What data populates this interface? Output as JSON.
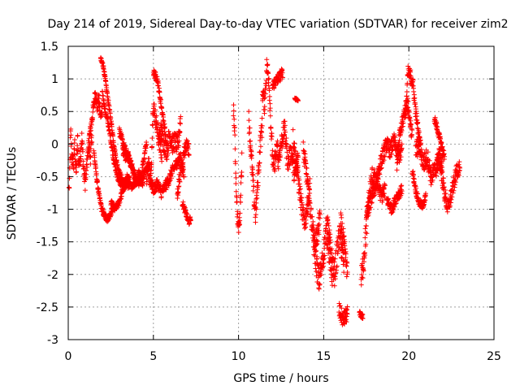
{
  "chart_data": {
    "type": "scatter",
    "title": "Day 214 of 2019, Sidereal Day-to-day VTEC variation (SDTVAR) for receiver zim2",
    "xlabel": "GPS time / hours",
    "ylabel": "SDTVAR / TECUs",
    "xlim": [
      0,
      25
    ],
    "ylim": [
      -3,
      1.5
    ],
    "x_ticks": [
      0,
      5,
      10,
      15,
      20,
      25
    ],
    "y_ticks": [
      1.5,
      1,
      0.5,
      0,
      -0.5,
      -1,
      -1.5,
      -2,
      -2.5,
      -3
    ],
    "x_tick_labels": [
      "0",
      "5",
      "10",
      "15",
      "20",
      "25"
    ],
    "y_tick_labels": [
      "1.5",
      "1",
      "0.5",
      "0",
      "-0.5",
      "-1",
      "-1.5",
      "-2",
      "-2.5",
      "-3"
    ],
    "grid": true,
    "marker": "+",
    "color": "#ff0000",
    "series": [
      {
        "name": "SDTVAR",
        "tracks": [
          {
            "t0": 0.05,
            "t1": 0.6,
            "v": [
              -0.7,
              -0.4,
              0.2,
              -0.1,
              -0.3,
              -0.2,
              -0.35,
              0.05,
              -0.25,
              -0.45,
              -0.2,
              0.1,
              -0.3
            ],
            "spread": 0.12
          },
          {
            "t0": 0.6,
            "t1": 1.4,
            "v": [
              -0.3,
              -0.2,
              0.1,
              -0.4,
              -0.6,
              -0.3,
              0.0,
              -0.2,
              0.1
            ],
            "spread": 0.12
          },
          {
            "t0": 1.2,
            "t1": 2.0,
            "v": [
              0.05,
              0.2,
              0.4,
              0.6,
              0.8,
              0.55,
              0.7,
              0.4,
              0.6
            ],
            "spread": 0.1
          },
          {
            "t0": 1.5,
            "t1": 2.6,
            "v": [
              -0.1,
              -0.5,
              -0.8,
              -1.0,
              -1.1,
              -1.15,
              -1.1,
              -1.0
            ],
            "spread": 0.05
          },
          {
            "t0": 1.9,
            "t1": 3.5,
            "v": [
              1.3,
              1.2,
              0.9,
              0.6,
              0.3,
              -0.05,
              -0.3,
              -0.45,
              -0.55,
              -0.6,
              -0.65
            ],
            "spread": 0.04
          },
          {
            "t0": 2.0,
            "t1": 3.6,
            "v": [
              0.8,
              0.5,
              0.3,
              0.0,
              -0.3,
              -0.5,
              -0.6,
              -0.65,
              -0.5,
              -0.55
            ],
            "spread": 0.05
          },
          {
            "t0": 2.5,
            "t1": 4.4,
            "v": [
              -0.9,
              -1.0,
              -0.9,
              -0.7,
              -0.6,
              -0.65,
              -0.6,
              -0.55,
              -0.6
            ],
            "spread": 0.05
          },
          {
            "t0": 3.2,
            "t1": 4.6,
            "v": [
              -0.1,
              -0.2,
              -0.15,
              -0.3,
              -0.4,
              -0.6,
              -0.45,
              -0.5,
              -0.2,
              0.05
            ],
            "spread": 0.06
          },
          {
            "t0": 3.0,
            "t1": 4.8,
            "v": [
              0.2,
              0.0,
              -0.15,
              -0.3,
              -0.5,
              -0.6,
              -0.5,
              -0.4,
              -0.3
            ],
            "spread": 0.06
          },
          {
            "t0": 4.6,
            "t1": 5.5,
            "v": [
              -0.5,
              -0.3,
              -0.6,
              0.6,
              0.4,
              0.2,
              0.0,
              -0.15
            ],
            "spread": 0.15
          },
          {
            "t0": 5.0,
            "t1": 5.8,
            "v": [
              1.1,
              1.05,
              1.0,
              0.8,
              0.6,
              0.4,
              0.2,
              -0.1
            ],
            "spread": 0.06
          },
          {
            "t0": 5.3,
            "t1": 6.6,
            "v": [
              0.1,
              0.2,
              0.0,
              -0.1,
              0.15,
              0.0,
              0.05,
              -0.05,
              0.4
            ],
            "spread": 0.15
          },
          {
            "t0": 4.8,
            "t1": 6.8,
            "v": [
              -0.55,
              -0.7,
              -0.6,
              -0.75,
              -0.65,
              -0.55,
              -0.4,
              -0.3,
              -0.2,
              -0.5
            ],
            "spread": 0.08
          },
          {
            "t0": 6.4,
            "t1": 7.1,
            "v": [
              -0.8,
              -0.5,
              -0.3,
              -0.1,
              0.0,
              -0.1
            ],
            "spread": 0.1
          },
          {
            "t0": 6.7,
            "t1": 7.2,
            "v": [
              -0.9,
              -1.0,
              -1.1,
              -1.2,
              -1.15
            ],
            "spread": 0.05
          },
          {
            "t0": 9.7,
            "t1": 10.2,
            "v": [
              0.55,
              0.2,
              -0.5,
              -1.0,
              -1.3,
              -1.2,
              -0.7,
              -0.2
            ],
            "spread": 0.12
          },
          {
            "t0": 10.6,
            "t1": 11.4,
            "v": [
              0.4,
              0.0,
              -0.4,
              -0.8,
              -1.1,
              -0.7,
              -0.3,
              0.1,
              0.3
            ],
            "spread": 0.15
          },
          {
            "t0": 11.4,
            "t1": 12.3,
            "v": [
              0.8,
              0.6,
              1.2,
              1.0,
              0.2,
              -0.4,
              -0.2,
              -0.05
            ],
            "spread": 0.15
          },
          {
            "t0": 12.0,
            "t1": 12.6,
            "v": [
              0.9,
              1.0,
              1.1
            ],
            "spread": 0.08
          },
          {
            "t0": 12.3,
            "t1": 13.5,
            "v": [
              -0.3,
              0.0,
              0.25,
              -0.3,
              -0.1,
              -0.5,
              -0.2
            ],
            "spread": 0.15
          },
          {
            "t0": 13.3,
            "t1": 13.5,
            "v": [
              0.7,
              0.68
            ],
            "spread": 0.02
          },
          {
            "t0": 13.2,
            "t1": 14.2,
            "v": [
              0.1,
              -0.2,
              -0.5,
              -0.8,
              -1.1,
              -1.2,
              -0.9,
              -0.6
            ],
            "spread": 0.15
          },
          {
            "t0": 13.8,
            "t1": 14.8,
            "v": [
              -0.1,
              -0.4,
              -0.8,
              -1.2,
              -1.5,
              -1.4,
              -1.1
            ],
            "spread": 0.15
          },
          {
            "t0": 14.4,
            "t1": 15.5,
            "v": [
              -1.5,
              -1.8,
              -2.1,
              -1.9,
              -1.6,
              -1.3,
              -1.7,
              -2.0
            ],
            "spread": 0.2
          },
          {
            "t0": 15.2,
            "t1": 16.2,
            "v": [
              -1.2,
              -1.5,
              -1.8,
              -2.0,
              -1.7,
              -1.4,
              -1.6,
              -1.9
            ],
            "spread": 0.2
          },
          {
            "t0": 15.9,
            "t1": 16.4,
            "v": [
              -2.55,
              -2.7,
              -2.6
            ],
            "spread": 0.12
          },
          {
            "t0": 16.0,
            "t1": 16.4,
            "v": [
              -1.2,
              -1.4,
              -1.7,
              -2.0
            ],
            "spread": 0.15
          },
          {
            "t0": 17.1,
            "t1": 17.3,
            "v": [
              -2.6,
              -2.65
            ],
            "spread": 0.04
          },
          {
            "t0": 17.2,
            "t1": 18.0,
            "v": [
              -2.1,
              -1.8,
              -1.4,
              -1.0,
              -0.7,
              -0.5,
              -0.6
            ],
            "spread": 0.2
          },
          {
            "t0": 17.5,
            "t1": 18.6,
            "v": [
              -1.1,
              -0.9,
              -0.7,
              -0.6,
              -0.8,
              -0.7
            ],
            "spread": 0.12
          },
          {
            "t0": 18.0,
            "t1": 19.6,
            "v": [
              -0.6,
              -0.4,
              -0.2,
              0.0,
              -0.1,
              0.05,
              -0.2,
              -0.1
            ],
            "spread": 0.12
          },
          {
            "t0": 18.7,
            "t1": 19.6,
            "v": [
              -0.85,
              -1.0,
              -0.8,
              -0.7
            ],
            "spread": 0.08
          },
          {
            "t0": 19.3,
            "t1": 20.2,
            "v": [
              -0.3,
              0.1,
              0.3,
              0.5,
              0.65,
              0.4,
              0.1
            ],
            "spread": 0.12
          },
          {
            "t0": 19.8,
            "t1": 20.7,
            "v": [
              0.4,
              1.1,
              1.05,
              0.9,
              0.5,
              0.2,
              -0.1
            ],
            "spread": 0.1
          },
          {
            "t0": 20.2,
            "t1": 21.0,
            "v": [
              -0.4,
              -0.7,
              -0.9,
              -0.95,
              -0.8
            ],
            "spread": 0.06
          },
          {
            "t0": 20.4,
            "t1": 22.0,
            "v": [
              -0.1,
              0.0,
              -0.3,
              -0.2,
              -0.5,
              -0.4,
              -0.2,
              -0.3
            ],
            "spread": 0.15
          },
          {
            "t0": 21.5,
            "t1": 22.1,
            "v": [
              0.4,
              0.2,
              0.0,
              -0.2
            ],
            "spread": 0.06
          },
          {
            "t0": 21.6,
            "t1": 23.0,
            "v": [
              -0.4,
              -0.2,
              -0.5,
              -0.8,
              -1.0,
              -0.8,
              -0.6,
              -0.4,
              -0.35
            ],
            "spread": 0.12
          }
        ]
      }
    ]
  }
}
